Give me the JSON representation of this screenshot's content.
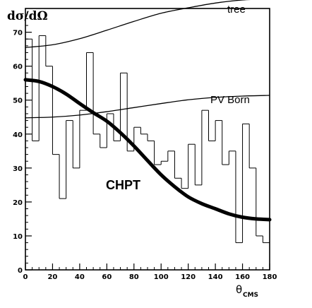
{
  "chart_data": {
    "type": "line",
    "ylabel": "dσ/dΩ",
    "xlabel_main": "θ",
    "xlabel_sub": "CMS",
    "xlim": [
      0,
      180
    ],
    "ylim": [
      0,
      77
    ],
    "xticks": [
      0,
      20,
      40,
      60,
      80,
      100,
      120,
      140,
      160,
      180
    ],
    "yticks": [
      0,
      10,
      20,
      30,
      40,
      50,
      60,
      70
    ],
    "grid": false,
    "series": [
      {
        "name": "tree",
        "x": [
          0,
          20,
          40,
          60,
          80,
          100,
          120,
          140,
          160,
          180
        ],
        "y": [
          65.5,
          66.3,
          68.1,
          70.6,
          73.2,
          75.6,
          77.2,
          78.6,
          79.5,
          79.8
        ]
      },
      {
        "name": "PV Born",
        "x": [
          0,
          20,
          40,
          60,
          80,
          100,
          120,
          140,
          160,
          180
        ],
        "y": [
          44.8,
          45.0,
          45.6,
          46.6,
          47.8,
          49.0,
          50.1,
          50.8,
          51.2,
          51.4
        ]
      },
      {
        "name": "CHPT",
        "x": [
          0,
          10,
          20,
          30,
          40,
          50,
          60,
          70,
          80,
          90,
          100,
          110,
          120,
          130,
          140,
          150,
          160,
          170,
          180
        ],
        "y": [
          56.0,
          55.5,
          54.0,
          51.8,
          49.0,
          46.3,
          43.8,
          40.4,
          36.5,
          32.2,
          28.0,
          24.5,
          21.5,
          19.5,
          18.0,
          16.5,
          15.5,
          15.0,
          14.8
        ]
      }
    ],
    "histogram": {
      "bin_width": 5,
      "bin_starts": [
        0,
        5,
        10,
        15,
        20,
        25,
        30,
        35,
        40,
        45,
        50,
        55,
        60,
        65,
        70,
        75,
        80,
        85,
        90,
        95,
        100,
        105,
        110,
        115,
        120,
        125,
        130,
        135,
        140,
        145,
        150,
        155,
        160,
        165,
        170,
        175
      ],
      "values": [
        68,
        38,
        69,
        60,
        34,
        21,
        44,
        30,
        47,
        64,
        40,
        36,
        46,
        38,
        58,
        35,
        42,
        40,
        38,
        31,
        32,
        35,
        27,
        24,
        37,
        25,
        47,
        38,
        44,
        31,
        35,
        8,
        43,
        30,
        10,
        8
      ]
    }
  }
}
